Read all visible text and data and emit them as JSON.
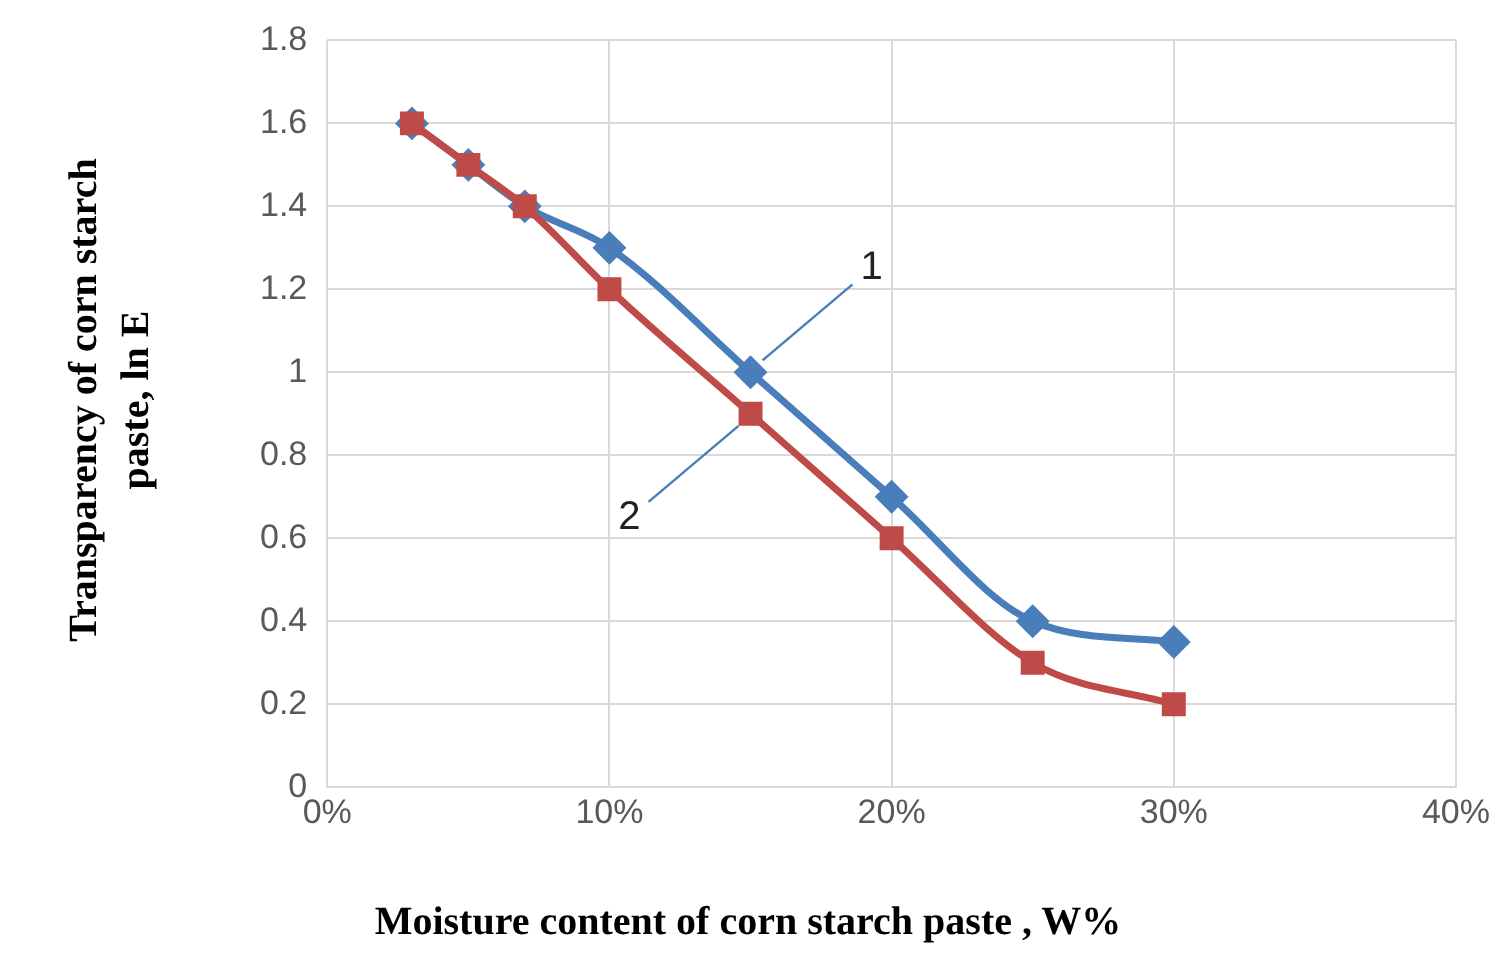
{
  "chart_data": {
    "type": "line",
    "xlabel": "Moisture content of corn starch paste , W%",
    "ylabel": "Transparency of corn starch paste, ln E",
    "x": [
      3,
      5,
      7,
      10,
      15,
      20,
      25,
      30
    ],
    "series": [
      {
        "name": "1",
        "color": "#4a7ebb",
        "values": [
          1.6,
          1.5,
          1.4,
          1.3,
          1.0,
          0.7,
          0.4,
          0.35
        ],
        "marker": "diamond"
      },
      {
        "name": "2",
        "color": "#be4b48",
        "values": [
          1.6,
          1.5,
          1.4,
          1.2,
          0.9,
          0.6,
          0.3,
          0.2
        ],
        "marker": "square"
      }
    ],
    "xlim": [
      0,
      40
    ],
    "xticks": [
      {
        "value": 0,
        "label": "0%"
      },
      {
        "value": 10,
        "label": "10%"
      },
      {
        "value": 20,
        "label": "20%"
      },
      {
        "value": 30,
        "label": "30%"
      },
      {
        "value": 40,
        "label": "40%"
      }
    ],
    "ylim": [
      0,
      1.8
    ],
    "yticks": [
      0,
      0.2,
      0.4,
      0.6,
      0.8,
      1,
      1.2,
      1.4,
      1.6,
      1.8
    ],
    "grid": true,
    "legend": false
  }
}
